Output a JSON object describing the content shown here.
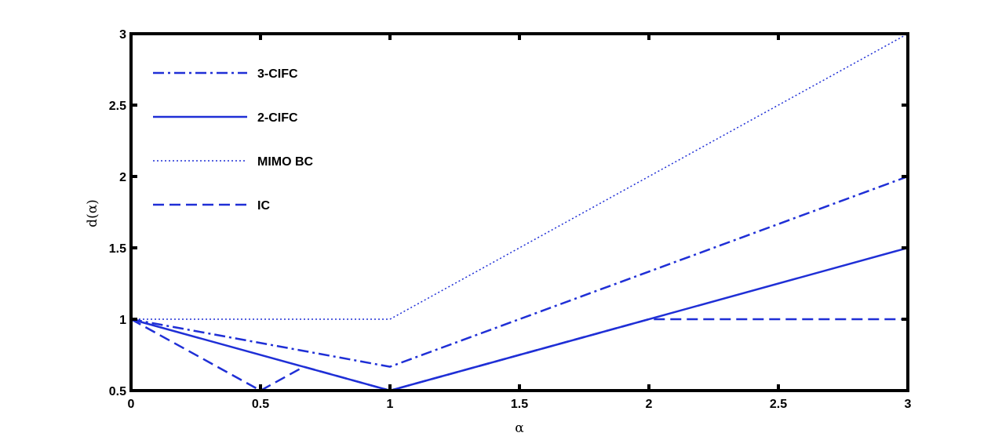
{
  "chart_data": {
    "type": "line",
    "title": "",
    "xlabel": "α",
    "ylabel": "d(α)",
    "xlim": [
      0,
      3
    ],
    "ylim": [
      0.5,
      3
    ],
    "xticks": [
      "0",
      "0.5",
      "1",
      "1.5",
      "2",
      "2.5",
      "3"
    ],
    "yticks": [
      "0.5",
      "1",
      "1.5",
      "2",
      "2.5",
      "3"
    ],
    "grid": false,
    "legend_position": "top-left",
    "line_color": "#1f2fd6",
    "series": [
      {
        "name": "3-CIFC",
        "style": "dashdot",
        "x": [
          0,
          1,
          3
        ],
        "y": [
          1,
          0.667,
          2
        ]
      },
      {
        "name": "2-CIFC",
        "style": "solid",
        "x": [
          0,
          1,
          3
        ],
        "y": [
          1,
          0.5,
          1.5
        ]
      },
      {
        "name": "MIMO BC",
        "style": "dotted",
        "x": [
          0,
          1,
          3
        ],
        "y": [
          1,
          1,
          3
        ]
      },
      {
        "name": "IC",
        "style": "dashed",
        "x": [
          0,
          0.5,
          0.667,
          1,
          2,
          3
        ],
        "y": [
          1,
          0.5,
          0.667,
          0.5,
          1,
          1
        ]
      }
    ]
  }
}
